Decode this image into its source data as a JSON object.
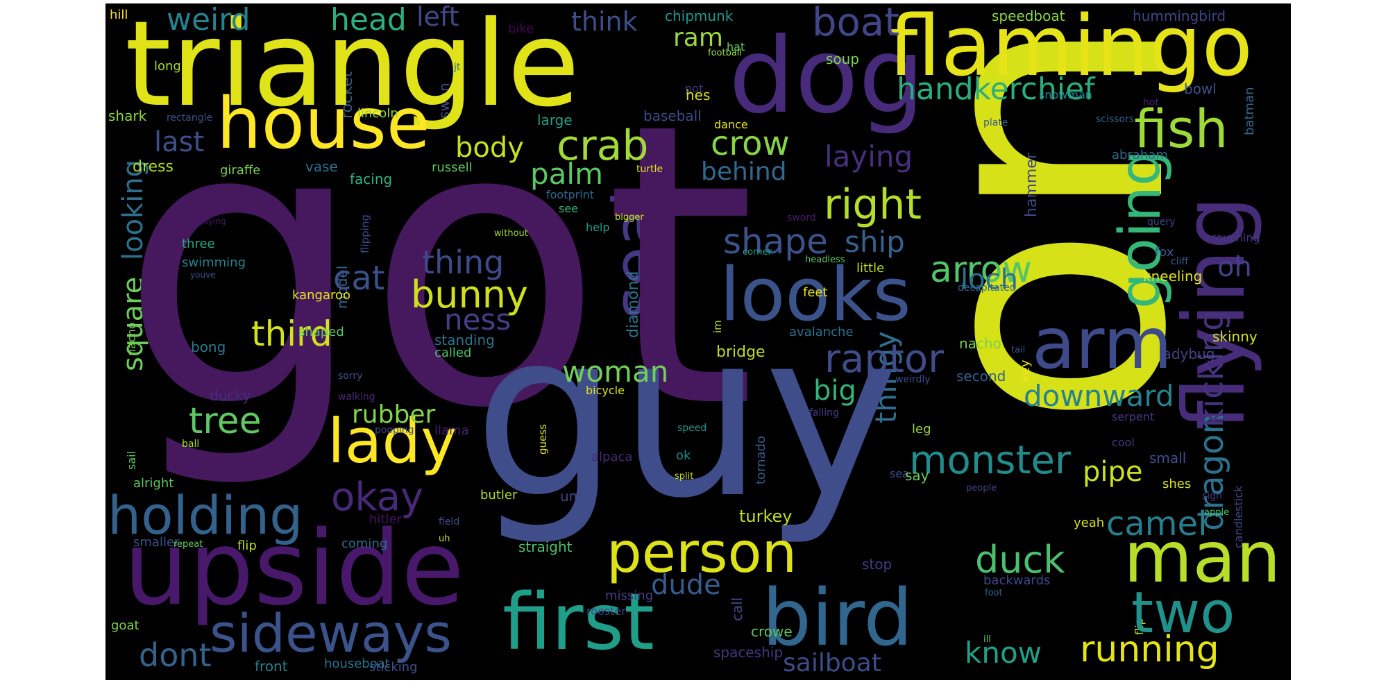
{
  "colors": {
    "background": "#000000"
  },
  "words": [
    {
      "text": "got",
      "color": "#46185e"
    },
    {
      "text": "one",
      "color": "#d7e118"
    },
    {
      "text": "guy",
      "color": "#3f4d8a"
    },
    {
      "text": "triangle",
      "color": "#dfe318"
    },
    {
      "text": "dog",
      "color": "#472a7a"
    },
    {
      "text": "flamingo",
      "color": "#e6e418"
    },
    {
      "text": "upside",
      "color": "#48186a"
    },
    {
      "text": "house",
      "color": "#fde725"
    },
    {
      "text": "flying",
      "color": "#472c7a"
    },
    {
      "text": "bird",
      "color": "#31668e"
    },
    {
      "text": "first",
      "color": "#1f9e89"
    },
    {
      "text": "man",
      "color": "#b8de29"
    },
    {
      "text": "looks",
      "color": "#3b528b"
    },
    {
      "text": "arm",
      "color": "#3e4a89"
    },
    {
      "text": "seal",
      "color": "#453781"
    },
    {
      "text": "sideways",
      "color": "#3b528b"
    },
    {
      "text": "holding",
      "color": "#33638d"
    },
    {
      "text": "lady",
      "color": "#fde725"
    },
    {
      "text": "person",
      "color": "#dde318"
    },
    {
      "text": "two",
      "color": "#21918c"
    },
    {
      "text": "going",
      "color": "#35b779"
    },
    {
      "text": "fish",
      "color": "#a0da39"
    },
    {
      "text": "dragon",
      "color": "#2c728e"
    },
    {
      "text": "kicking",
      "color": "#46337e"
    },
    {
      "text": "boat",
      "color": "#404688"
    },
    {
      "text": "crab",
      "color": "#a2da37"
    },
    {
      "text": "right",
      "color": "#b5de2b"
    },
    {
      "text": "monster",
      "color": "#228c8d"
    },
    {
      "text": "running",
      "color": "#e5e419"
    },
    {
      "text": "handkerchief",
      "color": "#29af7f"
    },
    {
      "text": "raptor",
      "color": "#3e4c8a"
    },
    {
      "text": "bunny",
      "color": "#d0e11c"
    },
    {
      "text": "duck",
      "color": "#4ac16d"
    },
    {
      "text": "camel",
      "color": "#277f8e"
    },
    {
      "text": "arrow",
      "color": "#52c569"
    },
    {
      "text": "okay",
      "color": "#482979"
    },
    {
      "text": "head",
      "color": "#2ab07f"
    },
    {
      "text": "weird",
      "color": "#26828e"
    },
    {
      "text": "tree",
      "color": "#5ec962"
    },
    {
      "text": "shape",
      "color": "#3b528b"
    },
    {
      "text": "ship",
      "color": "#34618d"
    },
    {
      "text": "third",
      "color": "#d2e21b"
    },
    {
      "text": "cat",
      "color": "#3b518b"
    },
    {
      "text": "woman",
      "color": "#73d056"
    },
    {
      "text": "crow",
      "color": "#86d549"
    },
    {
      "text": "palm",
      "color": "#5ac864"
    },
    {
      "text": "square",
      "color": "#6ccd5a"
    },
    {
      "text": "looking",
      "color": "#2d708e"
    },
    {
      "text": "thing",
      "color": "#3e4a89"
    },
    {
      "text": "ness",
      "color": "#433e85"
    },
    {
      "text": "body",
      "color": "#c8e020"
    },
    {
      "text": "last",
      "color": "#3d4e8a"
    },
    {
      "text": "behind",
      "color": "#31688e"
    },
    {
      "text": "laying",
      "color": "#472f7d"
    },
    {
      "text": "thingy",
      "color": "#2e6f8e"
    },
    {
      "text": "know",
      "color": "#1fa188"
    },
    {
      "text": "sailboat",
      "color": "#3d4d8a"
    },
    {
      "text": "dude",
      "color": "#365c8d"
    },
    {
      "text": "pipe",
      "color": "#cae11f"
    },
    {
      "text": "downward",
      "color": "#26828e"
    },
    {
      "text": "dont",
      "color": "#33638d"
    },
    {
      "text": "rubber",
      "color": "#84d44b"
    },
    {
      "text": "loch",
      "color": "#2c728e"
    },
    {
      "text": "oh",
      "color": "#414287"
    },
    {
      "text": "big",
      "color": "#31b57b"
    },
    {
      "text": "left",
      "color": "#3f4889"
    },
    {
      "text": "think",
      "color": "#3d4e8a"
    },
    {
      "text": "ram",
      "color": "#9bd93c"
    },
    {
      "text": "turkey",
      "color": "#bddf26"
    },
    {
      "text": "hummingbird",
      "color": "#3f4788"
    },
    {
      "text": "speedboat",
      "color": "#8bd646"
    },
    {
      "text": "chipmunk",
      "color": "#1f9a8a"
    },
    {
      "text": "soup",
      "color": "#7ad151"
    },
    {
      "text": "bike",
      "color": "#450457"
    },
    {
      "text": "hill",
      "color": "#fde725"
    },
    {
      "text": "hat",
      "color": "#5ec962"
    },
    {
      "text": "long",
      "color": "#a2da37"
    },
    {
      "text": "rocket",
      "color": "#38598c"
    },
    {
      "text": "shark",
      "color": "#8fd744"
    },
    {
      "text": "lincoln",
      "color": "#90d743"
    },
    {
      "text": "rectangle",
      "color": "#3b528b"
    },
    {
      "text": "hes",
      "color": "#d8e219"
    },
    {
      "text": "large",
      "color": "#20a386"
    },
    {
      "text": "baseball",
      "color": "#3e4a89"
    },
    {
      "text": "scissors",
      "color": "#32658e"
    },
    {
      "text": "snowman",
      "color": "#23888e"
    },
    {
      "text": "bowl",
      "color": "#3a548c"
    },
    {
      "text": "hot",
      "color": "#482475"
    },
    {
      "text": "batman",
      "color": "#31688e"
    },
    {
      "text": "plate",
      "color": "#38598c"
    },
    {
      "text": "pot",
      "color": "#453882"
    },
    {
      "text": "swan",
      "color": "#3e4c8a"
    },
    {
      "text": "football",
      "color": "#95d840"
    },
    {
      "text": "jt",
      "color": "#32648e"
    },
    {
      "text": "dress",
      "color": "#b0dd2f"
    },
    {
      "text": "giraffe",
      "color": "#7ad151"
    },
    {
      "text": "vase",
      "color": "#2d718e"
    },
    {
      "text": "russell",
      "color": "#5cc863"
    },
    {
      "text": "turtle",
      "color": "#e5e419"
    },
    {
      "text": "facing",
      "color": "#2fb47c"
    },
    {
      "text": "footprint",
      "color": "#30698e"
    },
    {
      "text": "dance",
      "color": "#e7e419"
    },
    {
      "text": "abraham",
      "color": "#2e6e8e"
    },
    {
      "text": "hammer",
      "color": "#3f4889"
    },
    {
      "text": "see",
      "color": "#35b779"
    },
    {
      "text": "help",
      "color": "#1fa188"
    },
    {
      "text": "bigger",
      "color": "#d2e21b"
    },
    {
      "text": "sword",
      "color": "#481b6d"
    },
    {
      "text": "query",
      "color": "#3f4788"
    },
    {
      "text": "crouching",
      "color": "#443983"
    },
    {
      "text": "fox",
      "color": "#365c8d"
    },
    {
      "text": "cliff",
      "color": "#365d8d"
    },
    {
      "text": "kneeling",
      "color": "#e2e418"
    },
    {
      "text": "without",
      "color": "#9dd93b"
    },
    {
      "text": "praying",
      "color": "#481668"
    },
    {
      "text": "flipping",
      "color": "#3e4989"
    },
    {
      "text": "side",
      "color": "#2b758e"
    },
    {
      "text": "three",
      "color": "#22a785"
    },
    {
      "text": "swimming",
      "color": "#26828e"
    },
    {
      "text": "youve",
      "color": "#3b518b"
    },
    {
      "text": "model",
      "color": "#31688e"
    },
    {
      "text": "diamond",
      "color": "#2b748e"
    },
    {
      "text": "corner",
      "color": "#20a386"
    },
    {
      "text": "headless",
      "color": "#5ec962"
    },
    {
      "text": "feet",
      "color": "#e2e418"
    },
    {
      "text": "little",
      "color": "#bade28"
    },
    {
      "text": "decapitated",
      "color": "#31668e"
    },
    {
      "text": "kangaroo",
      "color": "#e7e419"
    },
    {
      "text": "im",
      "color": "#b8de29"
    },
    {
      "text": "upsidedown",
      "color": "#95d840"
    },
    {
      "text": "avalanche",
      "color": "#2d708e"
    },
    {
      "text": "nacho",
      "color": "#77d153"
    },
    {
      "text": "skinny",
      "color": "#d2e21b"
    },
    {
      "text": "upward",
      "color": "#2e6d8e"
    },
    {
      "text": "bong",
      "color": "#2a788e"
    },
    {
      "text": "shaped",
      "color": "#5ec962"
    },
    {
      "text": "standing",
      "color": "#2d718e"
    },
    {
      "text": "called",
      "color": "#4cc26c"
    },
    {
      "text": "bridge",
      "color": "#b5de2b"
    },
    {
      "text": "second",
      "color": "#355f8d"
    },
    {
      "text": "key",
      "color": "#f1e51d"
    },
    {
      "text": "ladybug",
      "color": "#414487"
    },
    {
      "text": "tail",
      "color": "#3c4f8a"
    },
    {
      "text": "jumping",
      "color": "#2e6e8e"
    },
    {
      "text": "sorry",
      "color": "#3a548c"
    },
    {
      "text": "ducky",
      "color": "#472d7b"
    },
    {
      "text": "walking",
      "color": "#482878"
    },
    {
      "text": "bicycle",
      "color": "#e2e418"
    },
    {
      "text": "weirdly",
      "color": "#3e4989"
    },
    {
      "text": "falling",
      "color": "#443b84"
    },
    {
      "text": "serpent",
      "color": "#443983"
    },
    {
      "text": "pooping",
      "color": "#3e4c8a"
    },
    {
      "text": "llama",
      "color": "#482173"
    },
    {
      "text": "handstand",
      "color": "#37b878"
    },
    {
      "text": "guess",
      "color": "#d8e219"
    },
    {
      "text": "ball",
      "color": "#b5de2b"
    },
    {
      "text": "sail",
      "color": "#5ec962"
    },
    {
      "text": "speed",
      "color": "#1f988b"
    },
    {
      "text": "leg",
      "color": "#9bd93c"
    },
    {
      "text": "cool",
      "color": "#453882"
    },
    {
      "text": "small",
      "color": "#3b528b"
    },
    {
      "text": "alpaca",
      "color": "#482878"
    },
    {
      "text": "tornado",
      "color": "#38598c"
    },
    {
      "text": "ok",
      "color": "#24868e"
    },
    {
      "text": "split",
      "color": "#c2df23"
    },
    {
      "text": "sea",
      "color": "#3b518b"
    },
    {
      "text": "say",
      "color": "#6ccd5a"
    },
    {
      "text": "people",
      "color": "#414287"
    },
    {
      "text": "shes",
      "color": "#dde318"
    },
    {
      "text": "candlestick",
      "color": "#3e4a89"
    },
    {
      "text": "sign",
      "color": "#443983"
    },
    {
      "text": "apple",
      "color": "#4ac16d"
    },
    {
      "text": "animal",
      "color": "#a8db34"
    },
    {
      "text": "alright",
      "color": "#5ec962"
    },
    {
      "text": "butler",
      "color": "#addc30"
    },
    {
      "text": "um",
      "color": "#3f4889"
    },
    {
      "text": "yeah",
      "color": "#d5e21a"
    },
    {
      "text": "hitler",
      "color": "#471365"
    },
    {
      "text": "field",
      "color": "#3e4c8a"
    },
    {
      "text": "smaller",
      "color": "#3b528b"
    },
    {
      "text": "repeat",
      "color": "#65cb5e"
    },
    {
      "text": "coming",
      "color": "#2e6e8e"
    },
    {
      "text": "uh",
      "color": "#c5e021"
    },
    {
      "text": "flip",
      "color": "#b5de2b"
    },
    {
      "text": "straight",
      "color": "#4ec36b"
    },
    {
      "text": "call",
      "color": "#3e4c8a"
    },
    {
      "text": "stop",
      "color": "#433e85"
    },
    {
      "text": "missing",
      "color": "#433e85"
    },
    {
      "text": "backwards",
      "color": "#3e4989"
    },
    {
      "text": "foot",
      "color": "#31668e"
    },
    {
      "text": "back",
      "color": "#dde318"
    },
    {
      "text": "goat",
      "color": "#7fd34e"
    },
    {
      "text": "rooster",
      "color": "#3f4889"
    },
    {
      "text": "thats",
      "color": "#5ac864"
    },
    {
      "text": "crowe",
      "color": "#5ec962"
    },
    {
      "text": "spaceship",
      "color": "#453781"
    },
    {
      "text": "ill",
      "color": "#65cb5e"
    },
    {
      "text": "front",
      "color": "#26828e"
    },
    {
      "text": "houseboat",
      "color": "#2c728e"
    },
    {
      "text": "sticking",
      "color": "#3b518b"
    }
  ]
}
